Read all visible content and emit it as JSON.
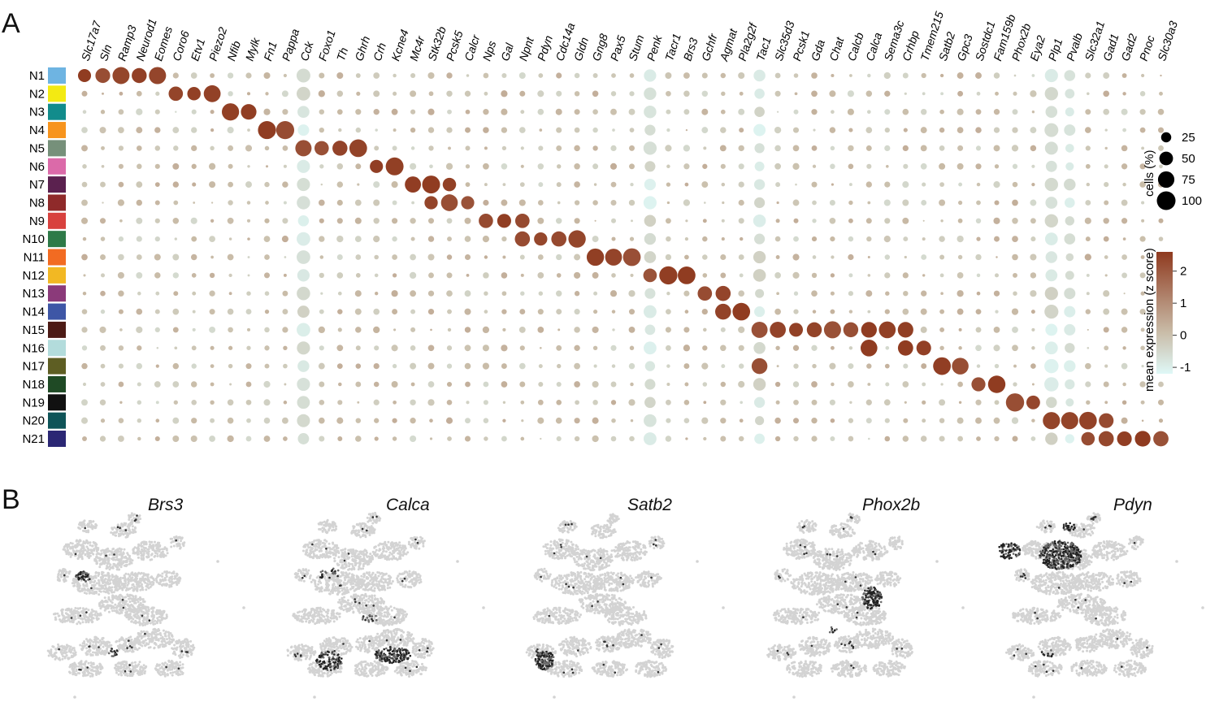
{
  "panel_a_letter": "A",
  "panel_b_letter": "B",
  "colors": {
    "high": "#8f3a1f",
    "mid": "#c9bca8",
    "low": "#dff8f7",
    "cluster": [
      "#6eb4e2",
      "#f3ea12",
      "#128c8c",
      "#f7941d",
      "#76907a",
      "#db6aa9",
      "#5b214f",
      "#8f2a2a",
      "#d8413e",
      "#2e7a48",
      "#f26b22",
      "#f2b823",
      "#8b3a7a",
      "#3e56a6",
      "#4c1a15",
      "#b3dcdc",
      "#5e5e23",
      "#1f4a25",
      "#111111",
      "#0f5458",
      "#2b2774"
    ]
  },
  "chart_data": [
    {
      "type": "scatter",
      "subtype": "dot-plot",
      "genes": [
        "Slc17a7",
        "Sln",
        "Ramp3",
        "Neurod1",
        "Eomes",
        "Coro6",
        "Etv1",
        "Piezo2",
        "Nfib",
        "Mylk",
        "Fn1",
        "Pappa",
        "Cck",
        "Foxo1",
        "Th",
        "Ghrh",
        "Crh",
        "Kcne4",
        "Mc4r",
        "Stk32b",
        "Pcsk5",
        "Calcr",
        "Nps",
        "Gal",
        "Npnt",
        "Pdyn",
        "Cdc14a",
        "Gldn",
        "Gng8",
        "Pax5",
        "Stum",
        "Penk",
        "Tacr1",
        "Brs3",
        "Gchfr",
        "Agmat",
        "Pla2g2f",
        "Tac1",
        "Slc35d3",
        "Pcsk1",
        "Gda",
        "Chat",
        "Calcb",
        "Calca",
        "Sema3c",
        "Crhbp",
        "Tmem215",
        "Satb2",
        "Gpc3",
        "Sostdc1",
        "Fam159b",
        "Phox2b",
        "Eya2",
        "Plp1",
        "Pvalb",
        "Slc32a1",
        "Gad1",
        "Gad2",
        "Pnoc",
        "Slc30a3"
      ],
      "clusters": [
        "N1",
        "N2",
        "N3",
        "N4",
        "N5",
        "N6",
        "N7",
        "N8",
        "N9",
        "N10",
        "N11",
        "N12",
        "N13",
        "N14",
        "N15",
        "N16",
        "N17",
        "N18",
        "N19",
        "N20",
        "N21"
      ],
      "marker_genes": [
        [
          "Slc17a7",
          "Sln",
          "Ramp3",
          "Neurod1",
          "Eomes"
        ],
        [
          "Coro6",
          "Etv1",
          "Piezo2"
        ],
        [
          "Nfib",
          "Mylk"
        ],
        [
          "Fn1",
          "Pappa"
        ],
        [
          "Cck",
          "Foxo1",
          "Th",
          "Ghrh"
        ],
        [
          "Crh",
          "Kcne4"
        ],
        [
          "Mc4r",
          "Stk32b",
          "Pcsk5"
        ],
        [
          "Stk32b",
          "Pcsk5",
          "Calcr"
        ],
        [
          "Nps",
          "Gal",
          "Npnt"
        ],
        [
          "Npnt",
          "Pdyn",
          "Cdc14a",
          "Gldn"
        ],
        [
          "Gng8",
          "Pax5",
          "Stum"
        ],
        [
          "Penk",
          "Tacr1",
          "Brs3"
        ],
        [
          "Gchfr",
          "Agmat"
        ],
        [
          "Agmat",
          "Pla2g2f"
        ],
        [
          "Tac1",
          "Slc35d3",
          "Pcsk1",
          "Gda",
          "Chat",
          "Calcb",
          "Calca",
          "Sema3c",
          "Crhbp"
        ],
        [
          "Calca",
          "Crhbp",
          "Tmem215"
        ],
        [
          "Tac1",
          "Satb2",
          "Gpc3"
        ],
        [
          "Sostdc1",
          "Fam159b"
        ],
        [
          "Phox2b",
          "Eya2"
        ],
        [
          "Plp1",
          "Pvalb",
          "Slc32a1",
          "Gad1"
        ],
        [
          "Slc32a1",
          "Gad1",
          "Gad2",
          "Pnoc",
          "Slc30a3"
        ]
      ],
      "size_legend": {
        "title": "cells (%)",
        "values": [
          25,
          50,
          75,
          100
        ]
      },
      "color_legend": {
        "title": "mean expression (z score)",
        "ticks": [
          -1,
          0,
          1,
          2
        ],
        "range": [
          -1.2,
          2.6
        ]
      }
    },
    {
      "type": "scatter",
      "subtype": "umap-feature-plots",
      "panels": [
        "Brs3",
        "Calca",
        "Satb2",
        "Phox2b",
        "Pdyn"
      ]
    }
  ]
}
